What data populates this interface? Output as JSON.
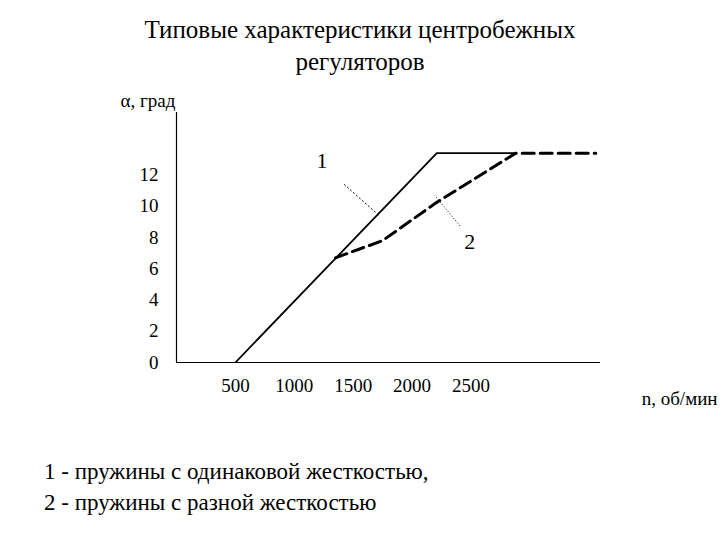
{
  "chart_data": {
    "type": "line",
    "title": [
      "Типовые характеристики центробежных",
      "регуляторов"
    ],
    "y_label": "α, град",
    "x_label": "n, об/мин",
    "xlim": [
      0,
      3600
    ],
    "xticks": [
      500,
      1000,
      1500,
      2000,
      2500
    ],
    "ylim": [
      0,
      16
    ],
    "yticks": [
      0,
      2,
      4,
      6,
      8,
      10,
      12
    ],
    "grid": false,
    "series": [
      {
        "name": "1",
        "color": "#000000",
        "line_style": "solid",
        "x": [
          500,
          2210,
          2880
        ],
        "values": [
          0,
          13.4,
          13.4
        ]
      },
      {
        "name": "2",
        "color": "#000000",
        "line_style": "dashed",
        "x": [
          1350,
          1750,
          2200,
          2880,
          3560
        ],
        "values": [
          6.7,
          7.8,
          10.2,
          13.4,
          13.4
        ]
      }
    ],
    "annotations": [
      {
        "text": "1",
        "x": 1235,
        "y": 12.9,
        "from_x": 1423,
        "from_y": 11.4,
        "to_x": 1722,
        "to_y": 9.4
      },
      {
        "text": "2",
        "x": 2490,
        "y": 7.7,
        "from_x": 2406,
        "from_y": 8.75,
        "to_x": 2192,
        "to_y": 10.7
      }
    ],
    "caption": [
      "1 - пружины с одинаковой жесткостью,",
      "2 - пружины с разной жесткостью"
    ]
  }
}
